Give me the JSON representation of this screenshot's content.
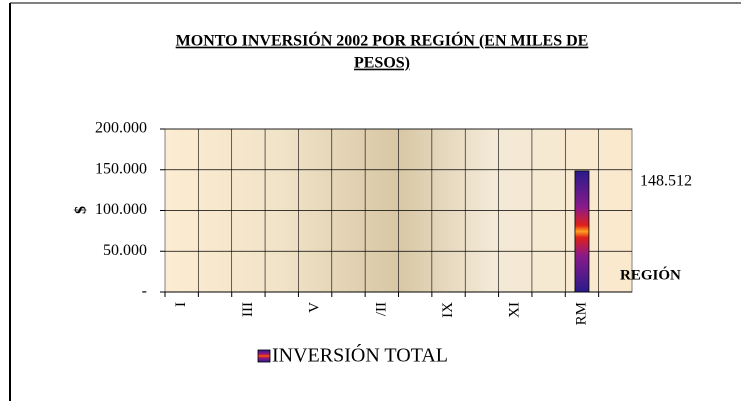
{
  "chart_data": {
    "type": "bar",
    "title": "MONTO INVERSIÓN 2002 POR REGIÓN (EN MILES DE PESOS)",
    "y_axis_label": "$",
    "x_axis_label": "REGIÓN",
    "categories": [
      "I",
      null,
      "III",
      null,
      "V",
      null,
      "/II",
      null,
      "IX",
      null,
      "XI",
      null,
      "RM",
      null
    ],
    "series": [
      {
        "name": "INVERSIÓN TOTAL",
        "color": "#3a1a8a",
        "values": [
          0,
          0,
          0,
          0,
          0,
          0,
          0,
          0,
          0,
          0,
          0,
          0,
          148512,
          null
        ],
        "value_labels": [
          null,
          null,
          null,
          null,
          null,
          null,
          null,
          null,
          null,
          null,
          null,
          null,
          "148.512",
          null
        ]
      }
    ],
    "ylim": [
      0,
      200000
    ],
    "yticks": [
      {
        "value": 0,
        "label": "-"
      },
      {
        "value": 50000,
        "label": "50.000"
      },
      {
        "value": 100000,
        "label": "100.000"
      },
      {
        "value": 150000,
        "label": "150.000"
      },
      {
        "value": 200000,
        "label": "200.000"
      }
    ],
    "grid": true
  }
}
